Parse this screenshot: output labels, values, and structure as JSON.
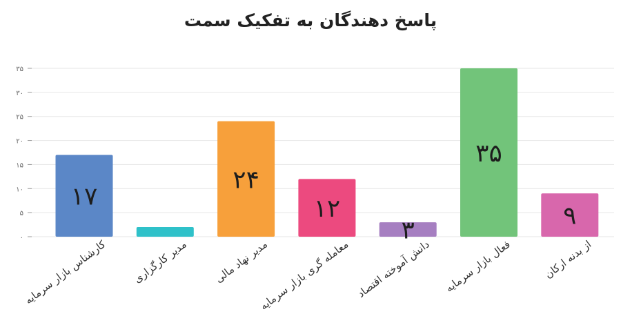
{
  "chart_data": {
    "type": "bar",
    "title": "پاسخ دهندگان به تفکیک سمت",
    "categories": [
      "کارشناس بازار سرمایه",
      "مدیر کارگزاری",
      "مدیر نهاد مالی",
      "معامله گری بازار سرمایه",
      "دانش آموخته اقتصاد",
      "فعال بازار سرمایه",
      "از بدنه ارکان"
    ],
    "values": [
      17,
      2,
      24,
      12,
      3,
      35,
      9
    ],
    "data_labels": [
      "۱۷",
      "",
      "۲۴",
      "۱۲",
      "۳",
      "۳۵",
      "۹"
    ],
    "yticks": [
      0,
      5,
      10,
      15,
      20,
      25,
      30,
      35
    ],
    "ytick_labels": [
      "۰",
      "۵",
      "۱۰",
      "۱۵",
      "۲۰",
      "۲۵",
      "۳۰",
      "۳۵"
    ],
    "ylim": [
      0,
      35
    ],
    "grid": true,
    "colors": [
      "#5b87c7",
      "#2fc1c9",
      "#f7a03b",
      "#ec4a7f",
      "#a67fc1",
      "#72c47a",
      "#d867ac"
    ]
  }
}
